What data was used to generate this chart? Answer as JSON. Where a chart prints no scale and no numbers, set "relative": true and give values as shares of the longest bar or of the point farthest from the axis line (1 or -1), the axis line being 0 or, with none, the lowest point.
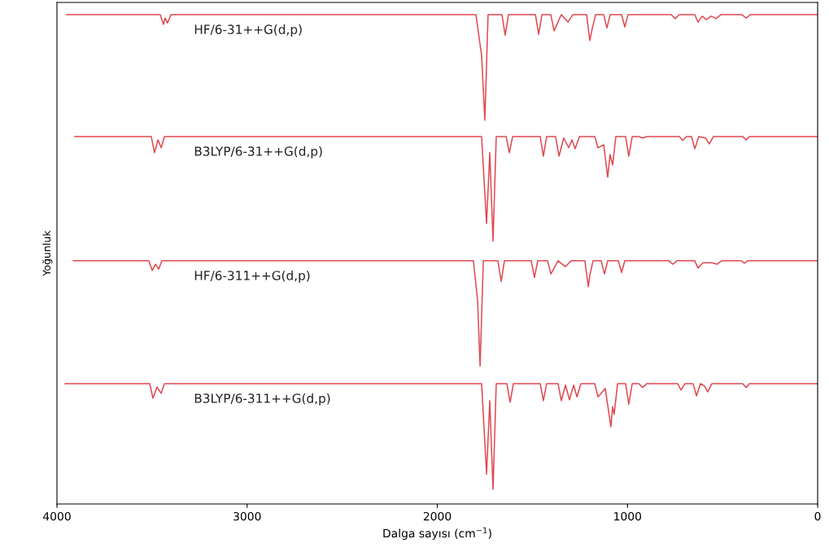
{
  "chart_data": {
    "type": "line",
    "relative": true,
    "xlabel": "Dalga sayısı (cm$^{−1}$)",
    "ylabel": "Yoğunluk",
    "xlim": [
      4000,
      0
    ],
    "xticks": [
      4000,
      3000,
      2000,
      1000,
      0
    ],
    "grid": false,
    "legend": false,
    "marker": "none",
    "line_style": "solid",
    "tick_labels": "x",
    "series": [
      {
        "name": "HF/6-31++G(d,p)",
        "color": "#e04850",
        "x": [
          3949,
          3457,
          3440,
          3431,
          3418,
          3401,
          1797,
          1767,
          1750,
          1733,
          1660,
          1643,
          1626,
          1484,
          1467,
          1450,
          1403,
          1386,
          1348,
          1313,
          1288,
          1215,
          1198,
          1185,
          1168,
          1125,
          1108,
          1091,
          1031,
          1014,
          997,
          770,
          749,
          727,
          646,
          629,
          607,
          586,
          560,
          535,
          509,
          398,
          376,
          355,
          0
        ],
        "values": [
          1.0,
          1.0,
          0.98,
          0.993,
          0.983,
          1.0,
          1.0,
          0.917,
          0.784,
          1.0,
          1.0,
          0.958,
          1.0,
          1.0,
          0.96,
          1.0,
          1.0,
          0.967,
          1.0,
          0.985,
          1.0,
          1.0,
          0.947,
          0.972,
          1.0,
          1.0,
          0.973,
          1.0,
          1.0,
          0.975,
          1.0,
          1.0,
          0.992,
          1.0,
          1.0,
          0.985,
          0.997,
          0.99,
          0.997,
          0.992,
          1.0,
          1.0,
          0.993,
          1.0,
          1.0
        ]
      },
      {
        "name": "B3LYP/6-31++G(d,p)",
        "color": "#e04850",
        "x": [
          3906,
          3504,
          3487,
          3469,
          3452,
          3435,
          1767,
          1741,
          1724,
          1707,
          1690,
          1638,
          1621,
          1604,
          1459,
          1442,
          1425,
          1378,
          1360,
          1335,
          1309,
          1292,
          1275,
          1253,
          1172,
          1155,
          1125,
          1104,
          1091,
          1078,
          1061,
          1010,
          993,
          975,
          941,
          920,
          898,
          727,
          710,
          689,
          663,
          646,
          625,
          590,
          569,
          548,
          394,
          376,
          359,
          0
        ],
        "values": [
          0.751,
          0.751,
          0.718,
          0.744,
          0.728,
          0.751,
          0.751,
          0.573,
          0.718,
          0.537,
          0.751,
          0.751,
          0.718,
          0.751,
          0.751,
          0.711,
          0.751,
          0.751,
          0.711,
          0.748,
          0.728,
          0.744,
          0.726,
          0.751,
          0.751,
          0.728,
          0.734,
          0.668,
          0.714,
          0.693,
          0.751,
          0.751,
          0.711,
          0.751,
          0.751,
          0.748,
          0.751,
          0.751,
          0.743,
          0.751,
          0.751,
          0.726,
          0.751,
          0.748,
          0.736,
          0.751,
          0.751,
          0.744,
          0.751,
          0.751
        ]
      },
      {
        "name": "HF/6-311++G(d,p)",
        "color": "#e04850",
        "x": [
          3914,
          3517,
          3499,
          3482,
          3465,
          3448,
          1810,
          1788,
          1775,
          1758,
          1681,
          1664,
          1647,
          1506,
          1489,
          1472,
          1420,
          1403,
          1365,
          1326,
          1296,
          1224,
          1206,
          1198,
          1181,
          1138,
          1121,
          1104,
          1048,
          1031,
          1014,
          783,
          761,
          740,
          646,
          629,
          603,
          556,
          530,
          505,
          402,
          385,
          368,
          0
        ],
        "values": [
          0.497,
          0.497,
          0.477,
          0.49,
          0.48,
          0.497,
          0.497,
          0.415,
          0.282,
          0.497,
          0.497,
          0.455,
          0.497,
          0.497,
          0.463,
          0.497,
          0.497,
          0.47,
          0.497,
          0.485,
          0.497,
          0.497,
          0.444,
          0.467,
          0.497,
          0.497,
          0.47,
          0.497,
          0.497,
          0.473,
          0.497,
          0.497,
          0.49,
          0.497,
          0.497,
          0.482,
          0.493,
          0.493,
          0.49,
          0.497,
          0.497,
          0.492,
          0.497,
          0.497
        ]
      },
      {
        "name": "B3LYP/6-311++G(d,p)",
        "color": "#e04850",
        "x": [
          3957,
          3512,
          3495,
          3474,
          3452,
          3435,
          1767,
          1741,
          1724,
          1707,
          1690,
          1634,
          1617,
          1600,
          1459,
          1442,
          1425,
          1365,
          1348,
          1326,
          1305,
          1283,
          1266,
          1245,
          1172,
          1155,
          1117,
          1087,
          1078,
          1070,
          1052,
          1010,
          993,
          975,
          941,
          920,
          898,
          736,
          719,
          697,
          655,
          637,
          616,
          595,
          578,
          556,
          394,
          376,
          359,
          0
        ],
        "values": [
          0.246,
          0.246,
          0.216,
          0.239,
          0.226,
          0.246,
          0.246,
          0.061,
          0.211,
          0.03,
          0.246,
          0.246,
          0.208,
          0.246,
          0.246,
          0.211,
          0.246,
          0.246,
          0.211,
          0.243,
          0.213,
          0.243,
          0.219,
          0.246,
          0.246,
          0.219,
          0.236,
          0.158,
          0.199,
          0.183,
          0.246,
          0.246,
          0.204,
          0.246,
          0.246,
          0.238,
          0.246,
          0.246,
          0.233,
          0.246,
          0.246,
          0.221,
          0.246,
          0.241,
          0.229,
          0.246,
          0.246,
          0.238,
          0.246,
          0.246
        ]
      }
    ]
  }
}
